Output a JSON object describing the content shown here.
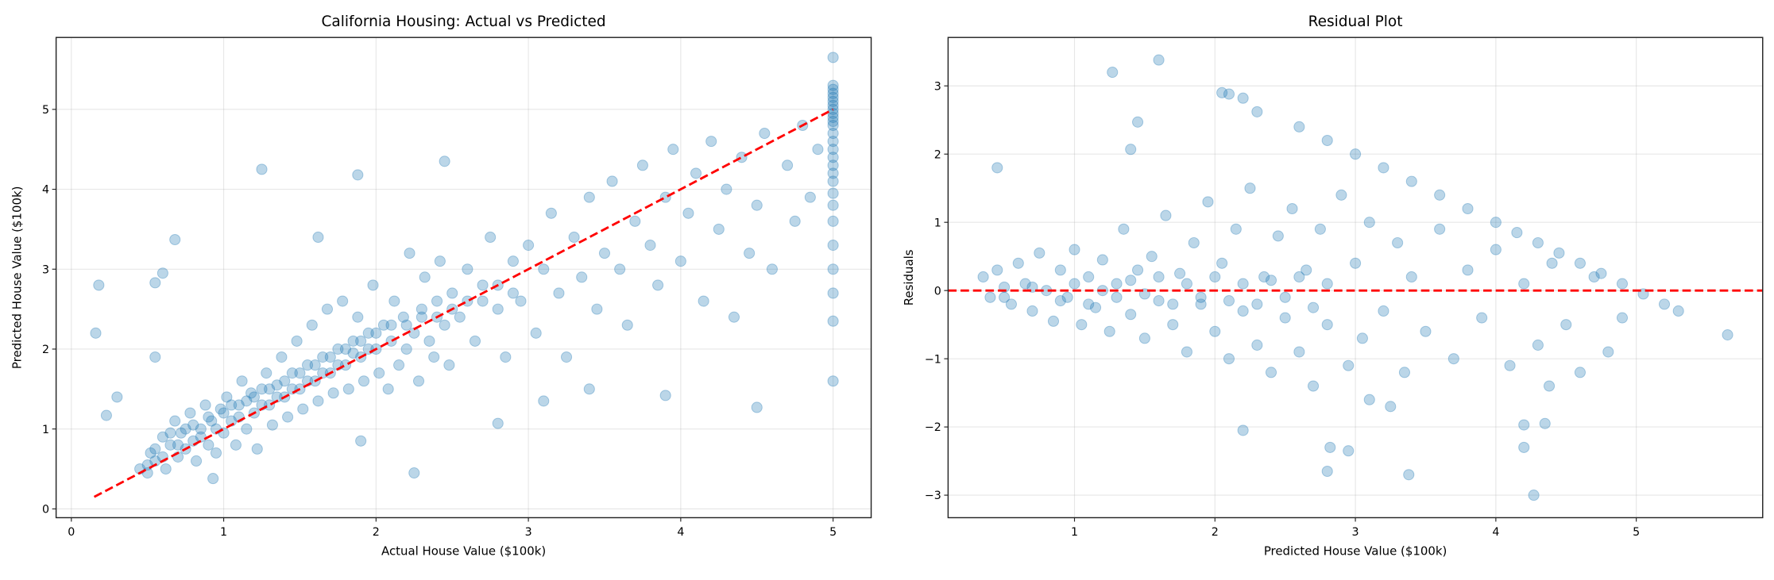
{
  "chart_data": [
    {
      "type": "scatter",
      "title": "California Housing: Actual vs Predicted",
      "xlabel": "Actual House Value ($100k)",
      "ylabel": "Predicted House Value ($100k)",
      "xlim": [
        -0.1,
        5.25
      ],
      "ylim": [
        -0.11,
        5.9
      ],
      "xticks": [
        0,
        1,
        2,
        3,
        4,
        5
      ],
      "yticks": [
        0,
        1,
        2,
        3,
        4,
        5
      ],
      "grid": true,
      "marker_color": "#1f77b4",
      "marker_alpha": 0.3,
      "reference_line": {
        "from": [
          0.15,
          0.15
        ],
        "to": [
          5.0,
          5.0
        ],
        "color": "#ff0000",
        "style": "dashed"
      },
      "points": [
        [
          0.45,
          0.5
        ],
        [
          0.5,
          0.45
        ],
        [
          0.52,
          0.7
        ],
        [
          0.55,
          0.6
        ],
        [
          0.6,
          0.9
        ],
        [
          0.62,
          0.5
        ],
        [
          0.65,
          0.8
        ],
        [
          0.68,
          1.1
        ],
        [
          0.7,
          0.65
        ],
        [
          0.72,
          0.95
        ],
        [
          0.75,
          0.75
        ],
        [
          0.78,
          1.2
        ],
        [
          0.8,
          0.85
        ],
        [
          0.82,
          0.6
        ],
        [
          0.85,
          1.0
        ],
        [
          0.88,
          1.3
        ],
        [
          0.9,
          0.8
        ],
        [
          0.92,
          1.1
        ],
        [
          0.95,
          0.7
        ],
        [
          0.98,
          1.25
        ],
        [
          1.0,
          0.95
        ],
        [
          1.02,
          1.4
        ],
        [
          1.05,
          1.1
        ],
        [
          1.08,
          0.8
        ],
        [
          1.1,
          1.3
        ],
        [
          1.12,
          1.6
        ],
        [
          1.15,
          1.0
        ],
        [
          1.18,
          1.45
        ],
        [
          1.2,
          1.2
        ],
        [
          1.22,
          0.75
        ],
        [
          1.25,
          1.5
        ],
        [
          1.28,
          1.7
        ],
        [
          1.3,
          1.3
        ],
        [
          1.32,
          1.05
        ],
        [
          1.35,
          1.55
        ],
        [
          1.38,
          1.9
        ],
        [
          1.4,
          1.4
        ],
        [
          1.42,
          1.15
        ],
        [
          1.45,
          1.7
        ],
        [
          1.48,
          2.1
        ],
        [
          1.5,
          1.5
        ],
        [
          1.52,
          1.25
        ],
        [
          1.55,
          1.8
        ],
        [
          1.58,
          2.3
        ],
        [
          1.6,
          1.6
        ],
        [
          1.62,
          1.35
        ],
        [
          1.65,
          1.9
        ],
        [
          1.68,
          2.5
        ],
        [
          1.7,
          1.7
        ],
        [
          1.72,
          1.45
        ],
        [
          1.75,
          2.0
        ],
        [
          1.78,
          2.6
        ],
        [
          1.8,
          1.8
        ],
        [
          1.82,
          1.5
        ],
        [
          1.85,
          2.1
        ],
        [
          1.88,
          2.4
        ],
        [
          1.9,
          1.9
        ],
        [
          1.92,
          1.6
        ],
        [
          1.95,
          2.2
        ],
        [
          1.98,
          2.8
        ],
        [
          2.0,
          2.0
        ],
        [
          2.02,
          1.7
        ],
        [
          2.05,
          2.3
        ],
        [
          2.08,
          1.5
        ],
        [
          2.1,
          2.1
        ],
        [
          2.12,
          2.6
        ],
        [
          2.15,
          1.8
        ],
        [
          2.18,
          2.4
        ],
        [
          2.2,
          2.0
        ],
        [
          2.22,
          3.2
        ],
        [
          2.25,
          2.2
        ],
        [
          2.28,
          1.6
        ],
        [
          2.3,
          2.5
        ],
        [
          2.32,
          2.9
        ],
        [
          2.35,
          2.1
        ],
        [
          2.38,
          1.9
        ],
        [
          2.4,
          2.6
        ],
        [
          2.42,
          3.1
        ],
        [
          2.45,
          2.3
        ],
        [
          2.48,
          1.8
        ],
        [
          2.5,
          2.7
        ],
        [
          2.55,
          2.4
        ],
        [
          2.6,
          3.0
        ],
        [
          2.65,
          2.1
        ],
        [
          2.7,
          2.8
        ],
        [
          2.75,
          3.4
        ],
        [
          2.8,
          2.5
        ],
        [
          2.85,
          1.9
        ],
        [
          2.9,
          3.1
        ],
        [
          2.95,
          2.6
        ],
        [
          3.0,
          3.3
        ],
        [
          3.05,
          2.2
        ],
        [
          3.1,
          3.0
        ],
        [
          3.15,
          3.7
        ],
        [
          3.2,
          2.7
        ],
        [
          3.25,
          1.9
        ],
        [
          3.3,
          3.4
        ],
        [
          3.35,
          2.9
        ],
        [
          3.4,
          3.9
        ],
        [
          3.45,
          2.5
        ],
        [
          3.5,
          3.2
        ],
        [
          3.55,
          4.1
        ],
        [
          3.6,
          3.0
        ],
        [
          3.65,
          2.3
        ],
        [
          3.7,
          3.6
        ],
        [
          3.75,
          4.3
        ],
        [
          3.8,
          3.3
        ],
        [
          3.85,
          2.8
        ],
        [
          3.9,
          3.9
        ],
        [
          3.95,
          4.5
        ],
        [
          4.0,
          3.1
        ],
        [
          4.05,
          3.7
        ],
        [
          4.1,
          4.2
        ],
        [
          4.15,
          2.6
        ],
        [
          4.2,
          4.6
        ],
        [
          4.25,
          3.5
        ],
        [
          4.3,
          4.0
        ],
        [
          4.35,
          2.4
        ],
        [
          4.4,
          4.4
        ],
        [
          4.45,
          3.2
        ],
        [
          4.5,
          3.8
        ],
        [
          4.55,
          4.7
        ],
        [
          4.6,
          3.0
        ],
        [
          4.7,
          4.3
        ],
        [
          4.75,
          3.6
        ],
        [
          4.8,
          4.8
        ],
        [
          4.85,
          3.9
        ],
        [
          4.9,
          4.5
        ],
        [
          5.0,
          1.6
        ],
        [
          5.0,
          2.35
        ],
        [
          5.0,
          2.7
        ],
        [
          5.0,
          3.0
        ],
        [
          5.0,
          3.3
        ],
        [
          5.0,
          3.6
        ],
        [
          5.0,
          3.8
        ],
        [
          5.0,
          3.95
        ],
        [
          5.0,
          4.1
        ],
        [
          5.0,
          4.2
        ],
        [
          5.0,
          4.3
        ],
        [
          5.0,
          4.4
        ],
        [
          5.0,
          4.5
        ],
        [
          5.0,
          4.6
        ],
        [
          5.0,
          4.7
        ],
        [
          5.0,
          4.8
        ],
        [
          5.0,
          4.85
        ],
        [
          5.0,
          4.9
        ],
        [
          5.0,
          4.95
        ],
        [
          5.0,
          5.0
        ],
        [
          5.0,
          5.05
        ],
        [
          5.0,
          5.1
        ],
        [
          5.0,
          5.15
        ],
        [
          5.0,
          5.2
        ],
        [
          5.0,
          5.25
        ],
        [
          5.0,
          5.3
        ],
        [
          5.0,
          5.65
        ],
        [
          0.16,
          2.2
        ],
        [
          0.18,
          2.8
        ],
        [
          0.3,
          1.4
        ],
        [
          0.23,
          1.17
        ],
        [
          0.55,
          2.83
        ],
        [
          0.6,
          2.95
        ],
        [
          0.55,
          1.9
        ],
        [
          0.68,
          3.37
        ],
        [
          1.25,
          4.25
        ],
        [
          1.88,
          4.18
        ],
        [
          1.62,
          3.4
        ],
        [
          2.25,
          0.45
        ],
        [
          4.5,
          1.27
        ],
        [
          3.9,
          1.42
        ],
        [
          3.4,
          1.5
        ],
        [
          3.1,
          1.35
        ],
        [
          2.8,
          1.07
        ],
        [
          1.9,
          0.85
        ],
        [
          0.93,
          0.38
        ],
        [
          2.45,
          4.35
        ],
        [
          0.5,
          0.55
        ],
        [
          0.55,
          0.75
        ],
        [
          0.6,
          0.65
        ],
        [
          0.65,
          0.95
        ],
        [
          0.7,
          0.8
        ],
        [
          0.75,
          1.0
        ],
        [
          0.8,
          1.05
        ],
        [
          0.85,
          0.9
        ],
        [
          0.9,
          1.15
        ],
        [
          0.95,
          1.0
        ],
        [
          1.0,
          1.2
        ],
        [
          1.05,
          1.3
        ],
        [
          1.1,
          1.15
        ],
        [
          1.15,
          1.35
        ],
        [
          1.2,
          1.4
        ],
        [
          1.25,
          1.3
        ],
        [
          1.3,
          1.5
        ],
        [
          1.35,
          1.4
        ],
        [
          1.4,
          1.6
        ],
        [
          1.45,
          1.5
        ],
        [
          1.5,
          1.7
        ],
        [
          1.55,
          1.6
        ],
        [
          1.6,
          1.8
        ],
        [
          1.65,
          1.7
        ],
        [
          1.7,
          1.9
        ],
        [
          1.75,
          1.8
        ],
        [
          1.8,
          2.0
        ],
        [
          1.85,
          1.95
        ],
        [
          1.9,
          2.1
        ],
        [
          1.95,
          2.0
        ],
        [
          2.0,
          2.2
        ],
        [
          2.1,
          2.3
        ],
        [
          2.2,
          2.3
        ],
        [
          2.3,
          2.4
        ],
        [
          2.4,
          2.4
        ],
        [
          2.5,
          2.5
        ],
        [
          2.6,
          2.6
        ],
        [
          2.7,
          2.6
        ],
        [
          2.8,
          2.8
        ],
        [
          2.9,
          2.7
        ]
      ]
    },
    {
      "type": "scatter",
      "title": "Residual Plot",
      "xlabel": "Predicted House Value ($100k)",
      "ylabel": "Residuals",
      "xlim": [
        0.1,
        5.9
      ],
      "ylim": [
        -3.33,
        3.71
      ],
      "xticks": [
        1,
        2,
        3,
        4,
        5
      ],
      "yticks": [
        -3,
        -2,
        -1,
        0,
        1,
        2,
        3
      ],
      "grid": true,
      "marker_color": "#1f77b4",
      "marker_alpha": 0.3,
      "reference_line": {
        "y": 0,
        "color": "#ff0000",
        "style": "dashed"
      },
      "points": [
        [
          0.35,
          0.2
        ],
        [
          0.4,
          -0.1
        ],
        [
          0.45,
          0.3
        ],
        [
          0.5,
          0.05
        ],
        [
          0.55,
          -0.2
        ],
        [
          0.6,
          0.4
        ],
        [
          0.65,
          0.1
        ],
        [
          0.7,
          -0.3
        ],
        [
          0.75,
          0.55
        ],
        [
          0.8,
          0.0
        ],
        [
          0.85,
          -0.45
        ],
        [
          0.9,
          0.3
        ],
        [
          0.95,
          -0.1
        ],
        [
          1.0,
          0.6
        ],
        [
          1.05,
          -0.5
        ],
        [
          1.1,
          0.2
        ],
        [
          1.15,
          -0.25
        ],
        [
          1.2,
          0.45
        ],
        [
          1.25,
          -0.6
        ],
        [
          1.3,
          0.1
        ],
        [
          1.35,
          0.9
        ],
        [
          1.4,
          -0.35
        ],
        [
          1.45,
          0.3
        ],
        [
          1.5,
          -0.7
        ],
        [
          1.55,
          0.5
        ],
        [
          1.6,
          -0.15
        ],
        [
          1.65,
          1.1
        ],
        [
          1.7,
          -0.5
        ],
        [
          1.75,
          0.25
        ],
        [
          1.8,
          -0.9
        ],
        [
          1.85,
          0.7
        ],
        [
          1.9,
          -0.2
        ],
        [
          1.95,
          1.3
        ],
        [
          2.0,
          -0.6
        ],
        [
          2.05,
          0.4
        ],
        [
          2.1,
          -1.0
        ],
        [
          2.15,
          0.9
        ],
        [
          2.2,
          -0.3
        ],
        [
          2.25,
          1.5
        ],
        [
          2.3,
          -0.8
        ],
        [
          2.35,
          0.2
        ],
        [
          2.4,
          -1.2
        ],
        [
          2.45,
          0.8
        ],
        [
          2.5,
          -0.4
        ],
        [
          2.55,
          1.2
        ],
        [
          2.6,
          -0.9
        ],
        [
          2.65,
          0.3
        ],
        [
          2.7,
          -1.4
        ],
        [
          2.75,
          0.9
        ],
        [
          2.8,
          -0.5
        ],
        [
          2.9,
          1.4
        ],
        [
          2.95,
          -1.1
        ],
        [
          3.0,
          0.4
        ],
        [
          3.05,
          -0.7
        ],
        [
          3.1,
          1.0
        ],
        [
          3.2,
          -0.3
        ],
        [
          3.3,
          0.7
        ],
        [
          3.35,
          -1.2
        ],
        [
          3.4,
          0.2
        ],
        [
          3.5,
          -0.6
        ],
        [
          3.6,
          0.9
        ],
        [
          3.7,
          -1.0
        ],
        [
          3.8,
          0.3
        ],
        [
          3.9,
          -0.4
        ],
        [
          4.0,
          0.6
        ],
        [
          4.1,
          -1.1
        ],
        [
          4.2,
          0.1
        ],
        [
          4.3,
          -0.8
        ],
        [
          4.4,
          0.4
        ],
        [
          4.5,
          -0.5
        ],
        [
          4.6,
          -1.2
        ],
        [
          4.7,
          0.2
        ],
        [
          4.8,
          -0.9
        ],
        [
          4.9,
          -0.4
        ],
        [
          0.5,
          -0.1
        ],
        [
          0.7,
          0.05
        ],
        [
          0.9,
          -0.15
        ],
        [
          1.0,
          0.1
        ],
        [
          1.1,
          -0.2
        ],
        [
          1.2,
          0.0
        ],
        [
          1.3,
          -0.1
        ],
        [
          1.4,
          0.15
        ],
        [
          1.5,
          -0.05
        ],
        [
          1.6,
          0.2
        ],
        [
          1.7,
          -0.2
        ],
        [
          1.8,
          0.1
        ],
        [
          1.9,
          -0.1
        ],
        [
          2.0,
          0.2
        ],
        [
          2.1,
          -0.15
        ],
        [
          2.2,
          0.1
        ],
        [
          2.3,
          -0.2
        ],
        [
          2.4,
          0.15
        ],
        [
          2.5,
          -0.1
        ],
        [
          2.6,
          0.2
        ],
        [
          2.7,
          -0.25
        ],
        [
          2.8,
          0.1
        ],
        [
          2.6,
          2.4
        ],
        [
          2.8,
          2.2
        ],
        [
          3.0,
          2.0
        ],
        [
          3.2,
          1.8
        ],
        [
          3.4,
          1.6
        ],
        [
          3.6,
          1.4
        ],
        [
          3.8,
          1.2
        ],
        [
          4.0,
          1.0
        ],
        [
          4.15,
          0.85
        ],
        [
          4.3,
          0.7
        ],
        [
          4.45,
          0.55
        ],
        [
          4.6,
          0.4
        ],
        [
          4.75,
          0.25
        ],
        [
          4.9,
          0.1
        ],
        [
          5.05,
          -0.05
        ],
        [
          5.2,
          -0.2
        ],
        [
          5.3,
          -0.3
        ],
        [
          0.45,
          1.8
        ],
        [
          1.27,
          3.2
        ],
        [
          1.6,
          3.38
        ],
        [
          2.05,
          2.9
        ],
        [
          2.1,
          2.88
        ],
        [
          2.2,
          2.82
        ],
        [
          2.3,
          2.62
        ],
        [
          1.45,
          2.47
        ],
        [
          1.4,
          2.07
        ],
        [
          2.2,
          -2.05
        ],
        [
          2.8,
          -2.65
        ],
        [
          2.82,
          -2.3
        ],
        [
          2.95,
          -2.35
        ],
        [
          3.38,
          -2.7
        ],
        [
          4.27,
          -3.0
        ],
        [
          4.2,
          -2.3
        ],
        [
          4.2,
          -1.97
        ],
        [
          4.35,
          -1.95
        ],
        [
          4.38,
          -1.4
        ],
        [
          5.65,
          -0.65
        ],
        [
          3.1,
          -1.6
        ],
        [
          3.25,
          -1.7
        ]
      ]
    }
  ]
}
